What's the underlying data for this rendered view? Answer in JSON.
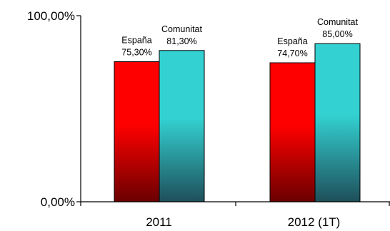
{
  "chart_data": {
    "type": "bar",
    "categories": [
      "2011",
      "2012 (1T)"
    ],
    "series": [
      {
        "name": "España",
        "values": [
          75.3,
          74.7
        ],
        "value_labels": [
          "75,30%",
          "74,70%"
        ],
        "color": "#ff0000",
        "color_dark": "#6a0000"
      },
      {
        "name": "Comunitat",
        "values": [
          81.3,
          85.0
        ],
        "value_labels": [
          "81,30%",
          "85,00%"
        ],
        "color": "#33d1d1",
        "color_dark": "#1e4f5a"
      }
    ],
    "y_ticks": [
      {
        "value": 0,
        "label": "0,00%"
      },
      {
        "value": 100,
        "label": "100,00%"
      }
    ],
    "ylim": [
      0,
      100
    ],
    "grid": false,
    "legend": "none"
  }
}
